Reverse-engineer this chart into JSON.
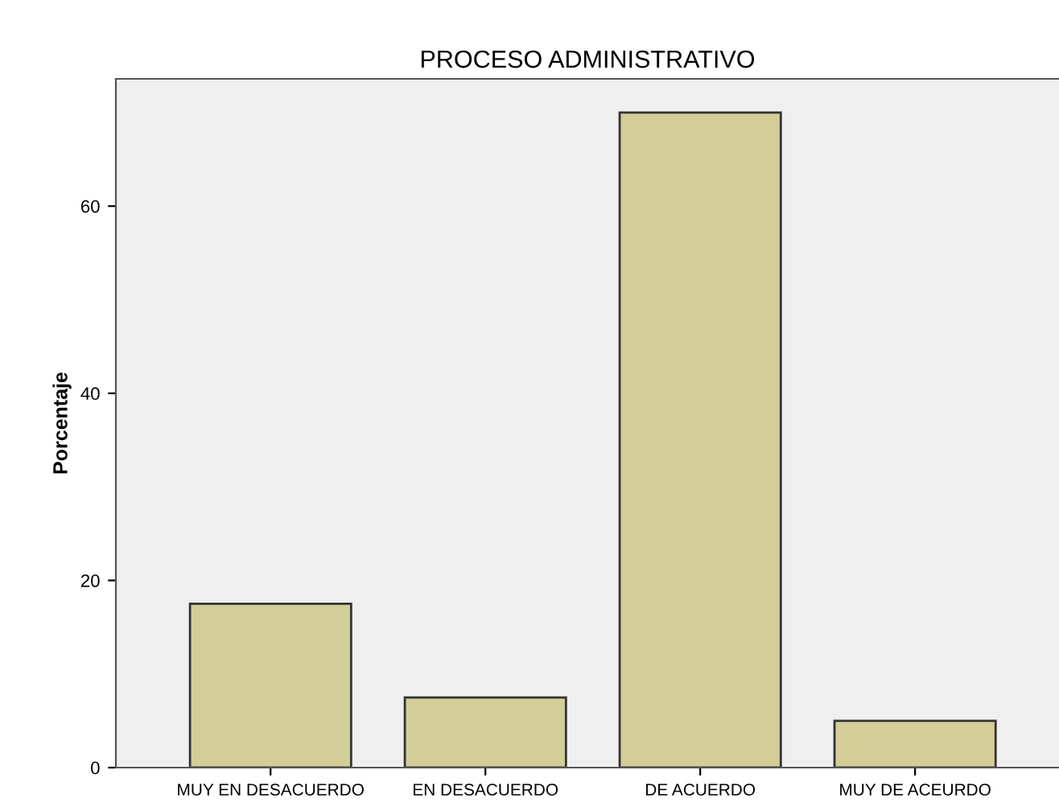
{
  "chart_data": {
    "type": "bar",
    "title": "PROCESO ADMINISTRATIVO",
    "ylabel": "Porcentaje",
    "categories": [
      "MUY EN DESACUERDO",
      "EN DESACUERDO",
      "DE ACUERDO",
      "MUY DE ACEURDO"
    ],
    "values": [
      17.5,
      7.5,
      70,
      5
    ],
    "color": "#d3ce98",
    "ylim": [
      0,
      73.6
    ],
    "yticks": [
      0,
      20,
      40,
      60
    ],
    "grid": false
  }
}
